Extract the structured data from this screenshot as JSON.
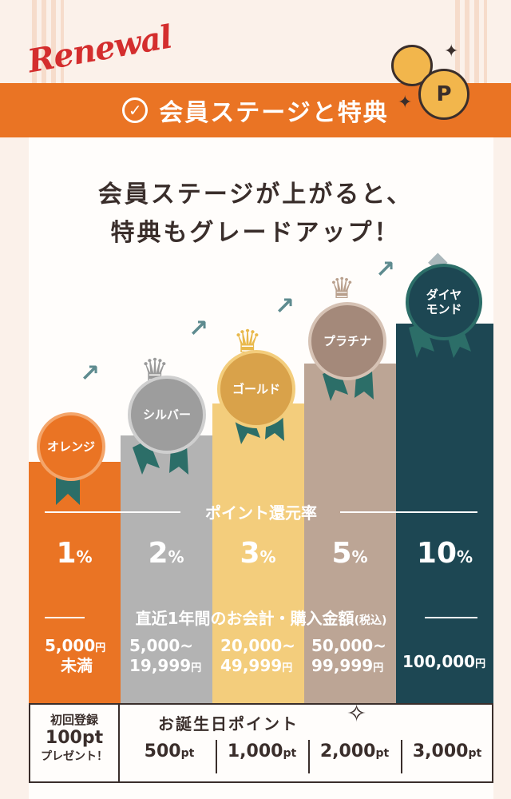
{
  "banner": {
    "renewal": "Renewal",
    "title": "会員ステージと特典"
  },
  "headline": {
    "line1": "会員ステージが上がると、",
    "line2": "特典もグレードアップ！"
  },
  "coin_label": "P",
  "stages": [
    {
      "name": "オレンジ",
      "color": "#ea7424",
      "rate": "1",
      "rate_unit": "%",
      "amount_line1": "5,000",
      "amount_unit1": "円",
      "amount_line2": "未満",
      "amount_unit2": ""
    },
    {
      "name": "シルバー",
      "color": "#b3b3b3",
      "rate": "2",
      "rate_unit": "%",
      "amount_line1": "5,000~",
      "amount_unit1": "",
      "amount_line2": "19,999",
      "amount_unit2": "円"
    },
    {
      "name": "ゴールド",
      "color": "#f3cd7c",
      "rate": "3",
      "rate_unit": "%",
      "amount_line1": "20,000~",
      "amount_unit1": "",
      "amount_line2": "49,999",
      "amount_unit2": "円"
    },
    {
      "name": "プラチナ",
      "color": "#bca595",
      "rate": "5",
      "rate_unit": "%",
      "amount_line1": "50,000~",
      "amount_unit1": "",
      "amount_line2": "99,999",
      "amount_unit2": "円"
    },
    {
      "name": "ダイヤ モンド",
      "color": "#1d4753",
      "rate": "10",
      "rate_unit": "%",
      "amount_line1": "100,000",
      "amount_unit1": "円",
      "amount_line2": "",
      "amount_unit2": ""
    }
  ],
  "labels": {
    "point_rate": "ポイント還元率",
    "purchase_amount": "直近1年間のお会計・購入金額",
    "tax_note": "(税込)"
  },
  "bottom": {
    "initial_line1": "初回登録",
    "initial_line2": "100pt",
    "initial_line3": "プレゼント！",
    "birthday_title": "お誕生日ポイント",
    "points": [
      {
        "value": "500",
        "unit": "pt"
      },
      {
        "value": "1,000",
        "unit": "pt"
      },
      {
        "value": "2,000",
        "unit": "pt"
      },
      {
        "value": "3,000",
        "unit": "pt"
      }
    ]
  }
}
